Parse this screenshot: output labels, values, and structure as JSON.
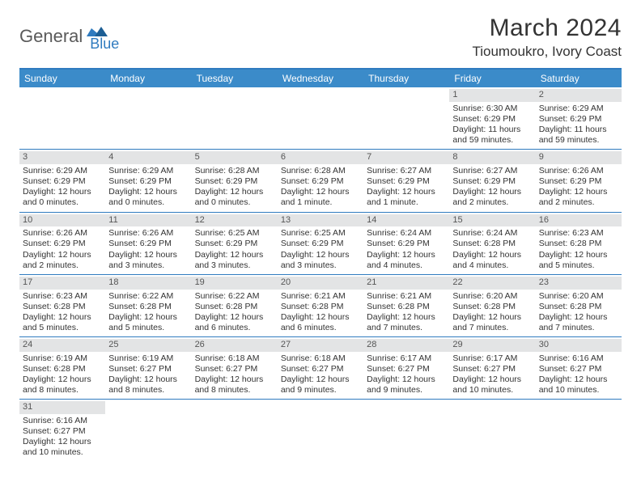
{
  "brand": {
    "general": "General",
    "blue": "Blue"
  },
  "title": {
    "monthYear": "March 2024",
    "location": "Tioumoukro, Ivory Coast"
  },
  "colors": {
    "headerBg": "#3b8bc9",
    "borderBlue": "#2f7bbf",
    "dayBg": "#e3e4e5"
  },
  "daysOfWeek": [
    "Sunday",
    "Monday",
    "Tuesday",
    "Wednesday",
    "Thursday",
    "Friday",
    "Saturday"
  ],
  "weeks": [
    [
      null,
      null,
      null,
      null,
      null,
      {
        "n": "1",
        "sr": "Sunrise: 6:30 AM",
        "ss": "Sunset: 6:29 PM",
        "d1": "Daylight: 11 hours",
        "d2": "and 59 minutes."
      },
      {
        "n": "2",
        "sr": "Sunrise: 6:29 AM",
        "ss": "Sunset: 6:29 PM",
        "d1": "Daylight: 11 hours",
        "d2": "and 59 minutes."
      }
    ],
    [
      {
        "n": "3",
        "sr": "Sunrise: 6:29 AM",
        "ss": "Sunset: 6:29 PM",
        "d1": "Daylight: 12 hours",
        "d2": "and 0 minutes."
      },
      {
        "n": "4",
        "sr": "Sunrise: 6:29 AM",
        "ss": "Sunset: 6:29 PM",
        "d1": "Daylight: 12 hours",
        "d2": "and 0 minutes."
      },
      {
        "n": "5",
        "sr": "Sunrise: 6:28 AM",
        "ss": "Sunset: 6:29 PM",
        "d1": "Daylight: 12 hours",
        "d2": "and 0 minutes."
      },
      {
        "n": "6",
        "sr": "Sunrise: 6:28 AM",
        "ss": "Sunset: 6:29 PM",
        "d1": "Daylight: 12 hours",
        "d2": "and 1 minute."
      },
      {
        "n": "7",
        "sr": "Sunrise: 6:27 AM",
        "ss": "Sunset: 6:29 PM",
        "d1": "Daylight: 12 hours",
        "d2": "and 1 minute."
      },
      {
        "n": "8",
        "sr": "Sunrise: 6:27 AM",
        "ss": "Sunset: 6:29 PM",
        "d1": "Daylight: 12 hours",
        "d2": "and 2 minutes."
      },
      {
        "n": "9",
        "sr": "Sunrise: 6:26 AM",
        "ss": "Sunset: 6:29 PM",
        "d1": "Daylight: 12 hours",
        "d2": "and 2 minutes."
      }
    ],
    [
      {
        "n": "10",
        "sr": "Sunrise: 6:26 AM",
        "ss": "Sunset: 6:29 PM",
        "d1": "Daylight: 12 hours",
        "d2": "and 2 minutes."
      },
      {
        "n": "11",
        "sr": "Sunrise: 6:26 AM",
        "ss": "Sunset: 6:29 PM",
        "d1": "Daylight: 12 hours",
        "d2": "and 3 minutes."
      },
      {
        "n": "12",
        "sr": "Sunrise: 6:25 AM",
        "ss": "Sunset: 6:29 PM",
        "d1": "Daylight: 12 hours",
        "d2": "and 3 minutes."
      },
      {
        "n": "13",
        "sr": "Sunrise: 6:25 AM",
        "ss": "Sunset: 6:29 PM",
        "d1": "Daylight: 12 hours",
        "d2": "and 3 minutes."
      },
      {
        "n": "14",
        "sr": "Sunrise: 6:24 AM",
        "ss": "Sunset: 6:29 PM",
        "d1": "Daylight: 12 hours",
        "d2": "and 4 minutes."
      },
      {
        "n": "15",
        "sr": "Sunrise: 6:24 AM",
        "ss": "Sunset: 6:28 PM",
        "d1": "Daylight: 12 hours",
        "d2": "and 4 minutes."
      },
      {
        "n": "16",
        "sr": "Sunrise: 6:23 AM",
        "ss": "Sunset: 6:28 PM",
        "d1": "Daylight: 12 hours",
        "d2": "and 5 minutes."
      }
    ],
    [
      {
        "n": "17",
        "sr": "Sunrise: 6:23 AM",
        "ss": "Sunset: 6:28 PM",
        "d1": "Daylight: 12 hours",
        "d2": "and 5 minutes."
      },
      {
        "n": "18",
        "sr": "Sunrise: 6:22 AM",
        "ss": "Sunset: 6:28 PM",
        "d1": "Daylight: 12 hours",
        "d2": "and 5 minutes."
      },
      {
        "n": "19",
        "sr": "Sunrise: 6:22 AM",
        "ss": "Sunset: 6:28 PM",
        "d1": "Daylight: 12 hours",
        "d2": "and 6 minutes."
      },
      {
        "n": "20",
        "sr": "Sunrise: 6:21 AM",
        "ss": "Sunset: 6:28 PM",
        "d1": "Daylight: 12 hours",
        "d2": "and 6 minutes."
      },
      {
        "n": "21",
        "sr": "Sunrise: 6:21 AM",
        "ss": "Sunset: 6:28 PM",
        "d1": "Daylight: 12 hours",
        "d2": "and 7 minutes."
      },
      {
        "n": "22",
        "sr": "Sunrise: 6:20 AM",
        "ss": "Sunset: 6:28 PM",
        "d1": "Daylight: 12 hours",
        "d2": "and 7 minutes."
      },
      {
        "n": "23",
        "sr": "Sunrise: 6:20 AM",
        "ss": "Sunset: 6:28 PM",
        "d1": "Daylight: 12 hours",
        "d2": "and 7 minutes."
      }
    ],
    [
      {
        "n": "24",
        "sr": "Sunrise: 6:19 AM",
        "ss": "Sunset: 6:28 PM",
        "d1": "Daylight: 12 hours",
        "d2": "and 8 minutes."
      },
      {
        "n": "25",
        "sr": "Sunrise: 6:19 AM",
        "ss": "Sunset: 6:27 PM",
        "d1": "Daylight: 12 hours",
        "d2": "and 8 minutes."
      },
      {
        "n": "26",
        "sr": "Sunrise: 6:18 AM",
        "ss": "Sunset: 6:27 PM",
        "d1": "Daylight: 12 hours",
        "d2": "and 8 minutes."
      },
      {
        "n": "27",
        "sr": "Sunrise: 6:18 AM",
        "ss": "Sunset: 6:27 PM",
        "d1": "Daylight: 12 hours",
        "d2": "and 9 minutes."
      },
      {
        "n": "28",
        "sr": "Sunrise: 6:17 AM",
        "ss": "Sunset: 6:27 PM",
        "d1": "Daylight: 12 hours",
        "d2": "and 9 minutes."
      },
      {
        "n": "29",
        "sr": "Sunrise: 6:17 AM",
        "ss": "Sunset: 6:27 PM",
        "d1": "Daylight: 12 hours",
        "d2": "and 10 minutes."
      },
      {
        "n": "30",
        "sr": "Sunrise: 6:16 AM",
        "ss": "Sunset: 6:27 PM",
        "d1": "Daylight: 12 hours",
        "d2": "and 10 minutes."
      }
    ],
    [
      {
        "n": "31",
        "sr": "Sunrise: 6:16 AM",
        "ss": "Sunset: 6:27 PM",
        "d1": "Daylight: 12 hours",
        "d2": "and 10 minutes."
      },
      null,
      null,
      null,
      null,
      null,
      null
    ]
  ]
}
